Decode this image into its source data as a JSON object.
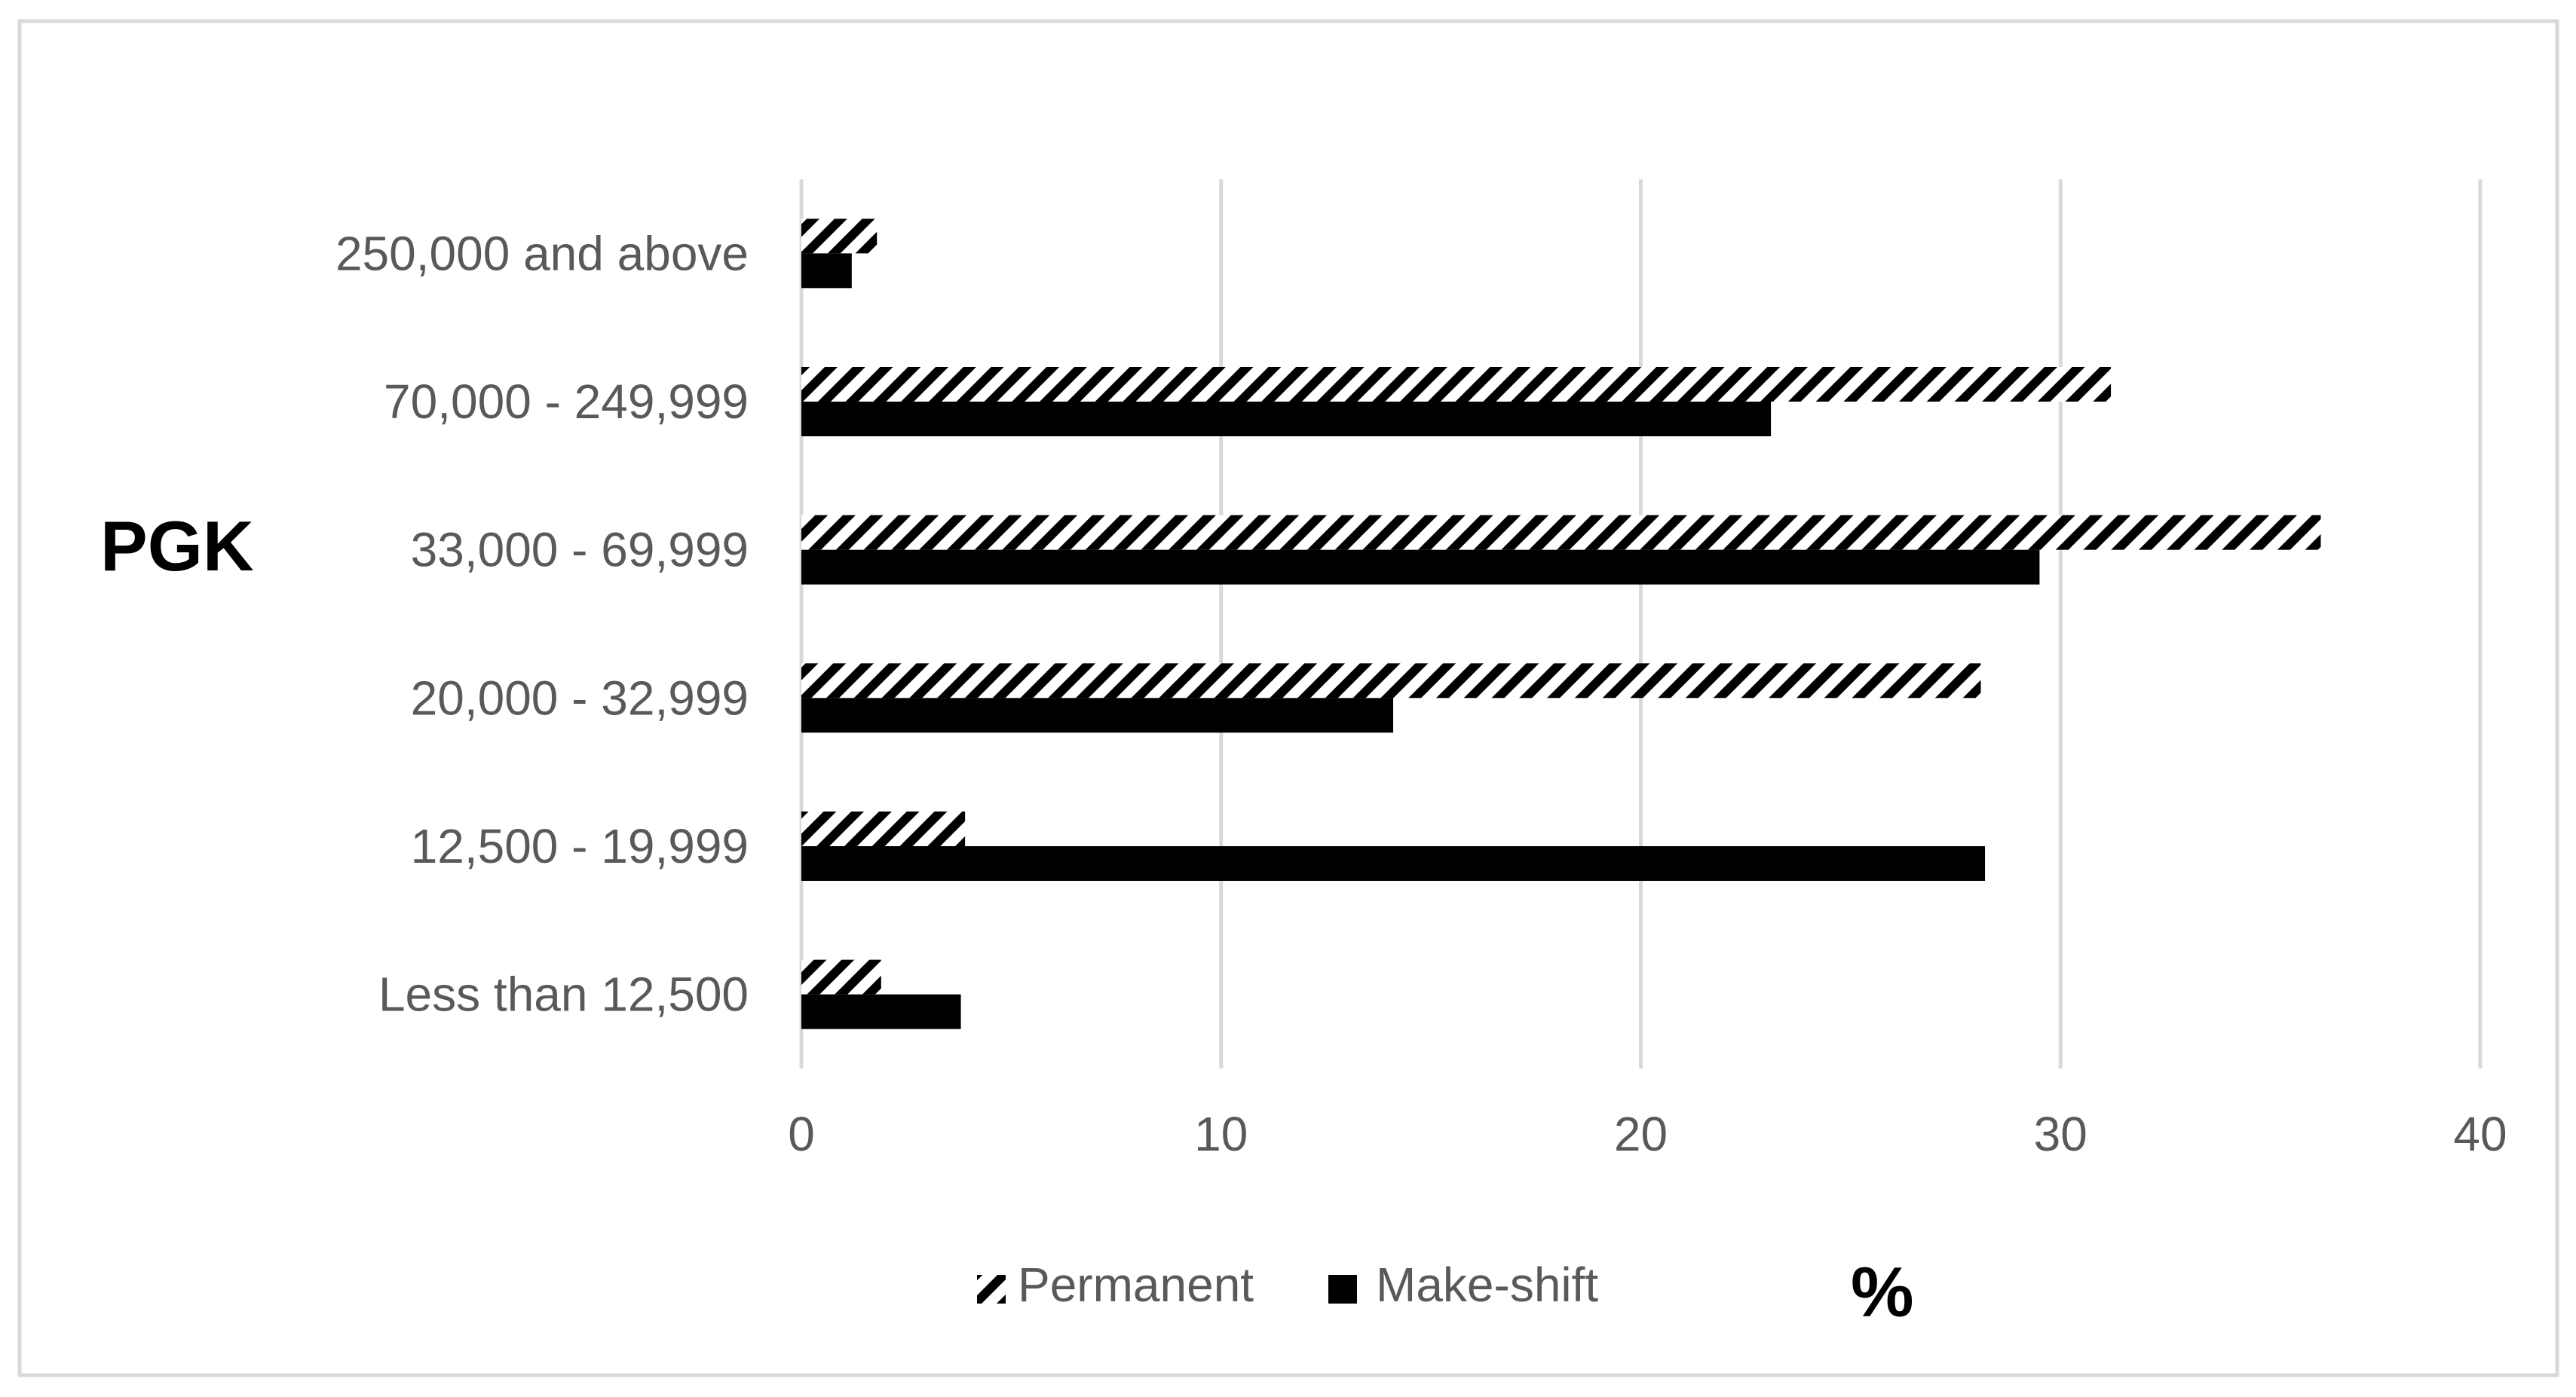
{
  "chart_data": {
    "type": "bar",
    "orientation": "horizontal",
    "categories": [
      "250,000 and above",
      "70,000 - 249,999",
      "33,000 - 69,999",
      "20,000 - 32,999",
      "12,500 - 19,999",
      "Less than 12,500"
    ],
    "series": [
      {
        "name": "Permanent",
        "values": [
          1.8,
          31.2,
          36.2,
          28.1,
          3.9,
          1.9
        ],
        "color": "#000000",
        "pattern": "diagonal-stripes"
      },
      {
        "name": "Make-shift",
        "values": [
          1.2,
          23.1,
          29.5,
          14.1,
          28.2,
          3.8
        ],
        "color": "#000000",
        "pattern": "solid"
      }
    ],
    "title": "",
    "xlabel": "%",
    "ylabel": "PGK",
    "xlim": [
      0,
      40
    ],
    "xticks": [
      "0",
      "10",
      "20",
      "30",
      "40"
    ],
    "grid": "vertical",
    "legend_position": "bottom"
  },
  "colors": {
    "gridline": "#d9d9d9",
    "frame": "#d9d9d9",
    "tick_text": "#595959",
    "bar": "#000000"
  }
}
